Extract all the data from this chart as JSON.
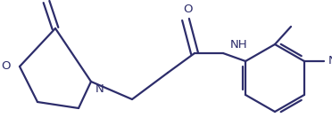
{
  "bg_color": "#ffffff",
  "line_color": "#2d2d6b",
  "line_width": 1.6,
  "font_size": 9.5,
  "figsize": [
    3.72,
    1.5
  ],
  "dpi": 100,
  "xlim": [
    0,
    372
  ],
  "ylim": [
    0,
    150
  ]
}
